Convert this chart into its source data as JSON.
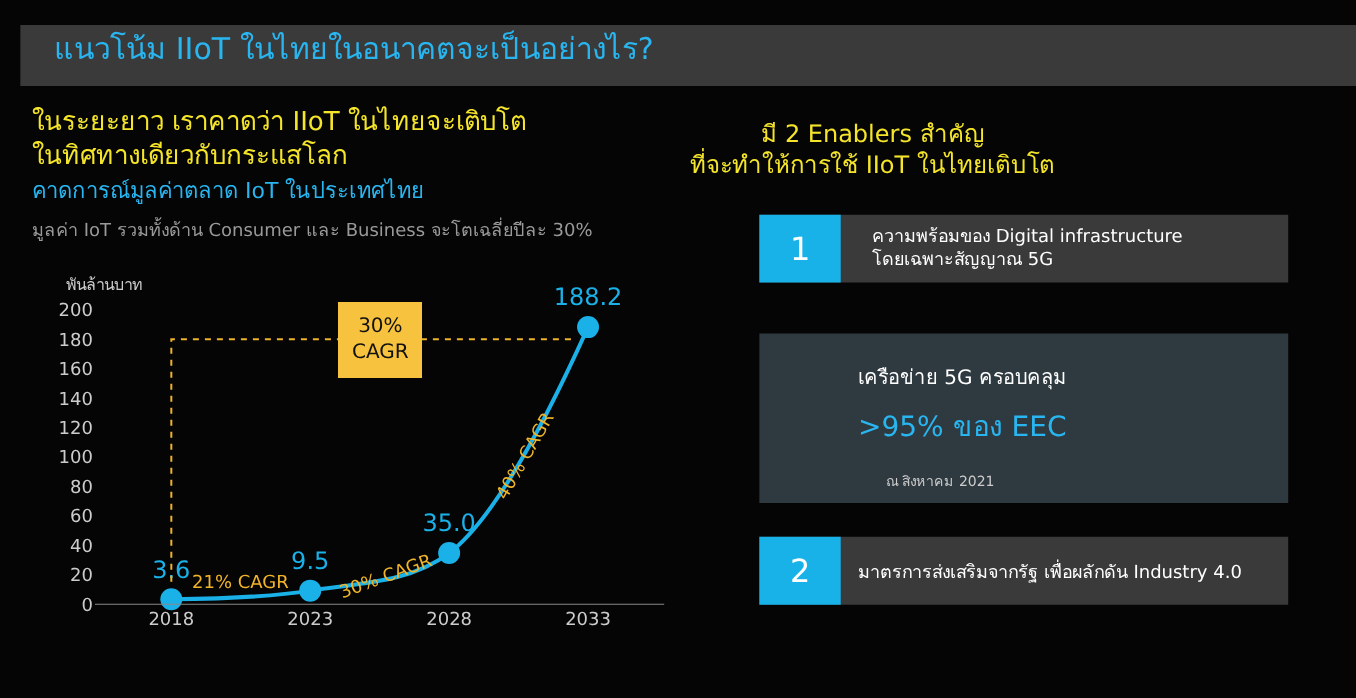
{
  "chart_data": {
    "type": "line",
    "title": "แนวโน้ม IIoT ในไทยในอนาคตจะเป็นอย่างไร?",
    "subtitle": "ในระยะยาว เราคาดว่า IIoT ในไทยจะเติบโต\nในทิศทางเดียวกับกระแสโลก",
    "ylabel": "พันล้านบาท",
    "categories": [
      "2018",
      "2023",
      "2028",
      "2033"
    ],
    "series": [
      {
        "color": "#1ab0e8",
        "values": [
          3.6,
          9.5,
          35.0,
          188.2
        ],
        "value_labels": [
          "3.6",
          "9.5",
          "35.0",
          "188.2"
        ]
      }
    ],
    "ylim": [
      0,
      200
    ],
    "yticks": [
      0,
      20,
      40,
      60,
      80,
      100,
      120,
      140,
      160,
      180,
      200
    ],
    "grid": false,
    "legend": false,
    "marker": "circle",
    "line_style": "solid",
    "annotations": [
      "คาดการณ์มูลค่าตลาด IoT ในประเทศไทย",
      "มูลค่า IoT รวมทั้งด้าน Consumer และ Business จะโตเฉลี่ยปีละ 30%",
      "30%\nCAGR",
      "21% CAGR",
      "30% CAGR",
      "40% CAGR",
      "มี 2 Enablers สำคัญ\nที่จะทำให้การใช้ IIoT ในไทยเติบโต",
      "1",
      "ความพร้อมของ Digital infrastructure\nโดยเฉพาะสัญญาณ 5G",
      "เครือข่าย 5G ครอบคลุม",
      ">95% ของ EEC",
      "ณ สิงหาคม 2021",
      "2",
      "มาตรการส่งเสริมจากรัฐ เพื่อผลักดัน Industry 4.0"
    ]
  }
}
